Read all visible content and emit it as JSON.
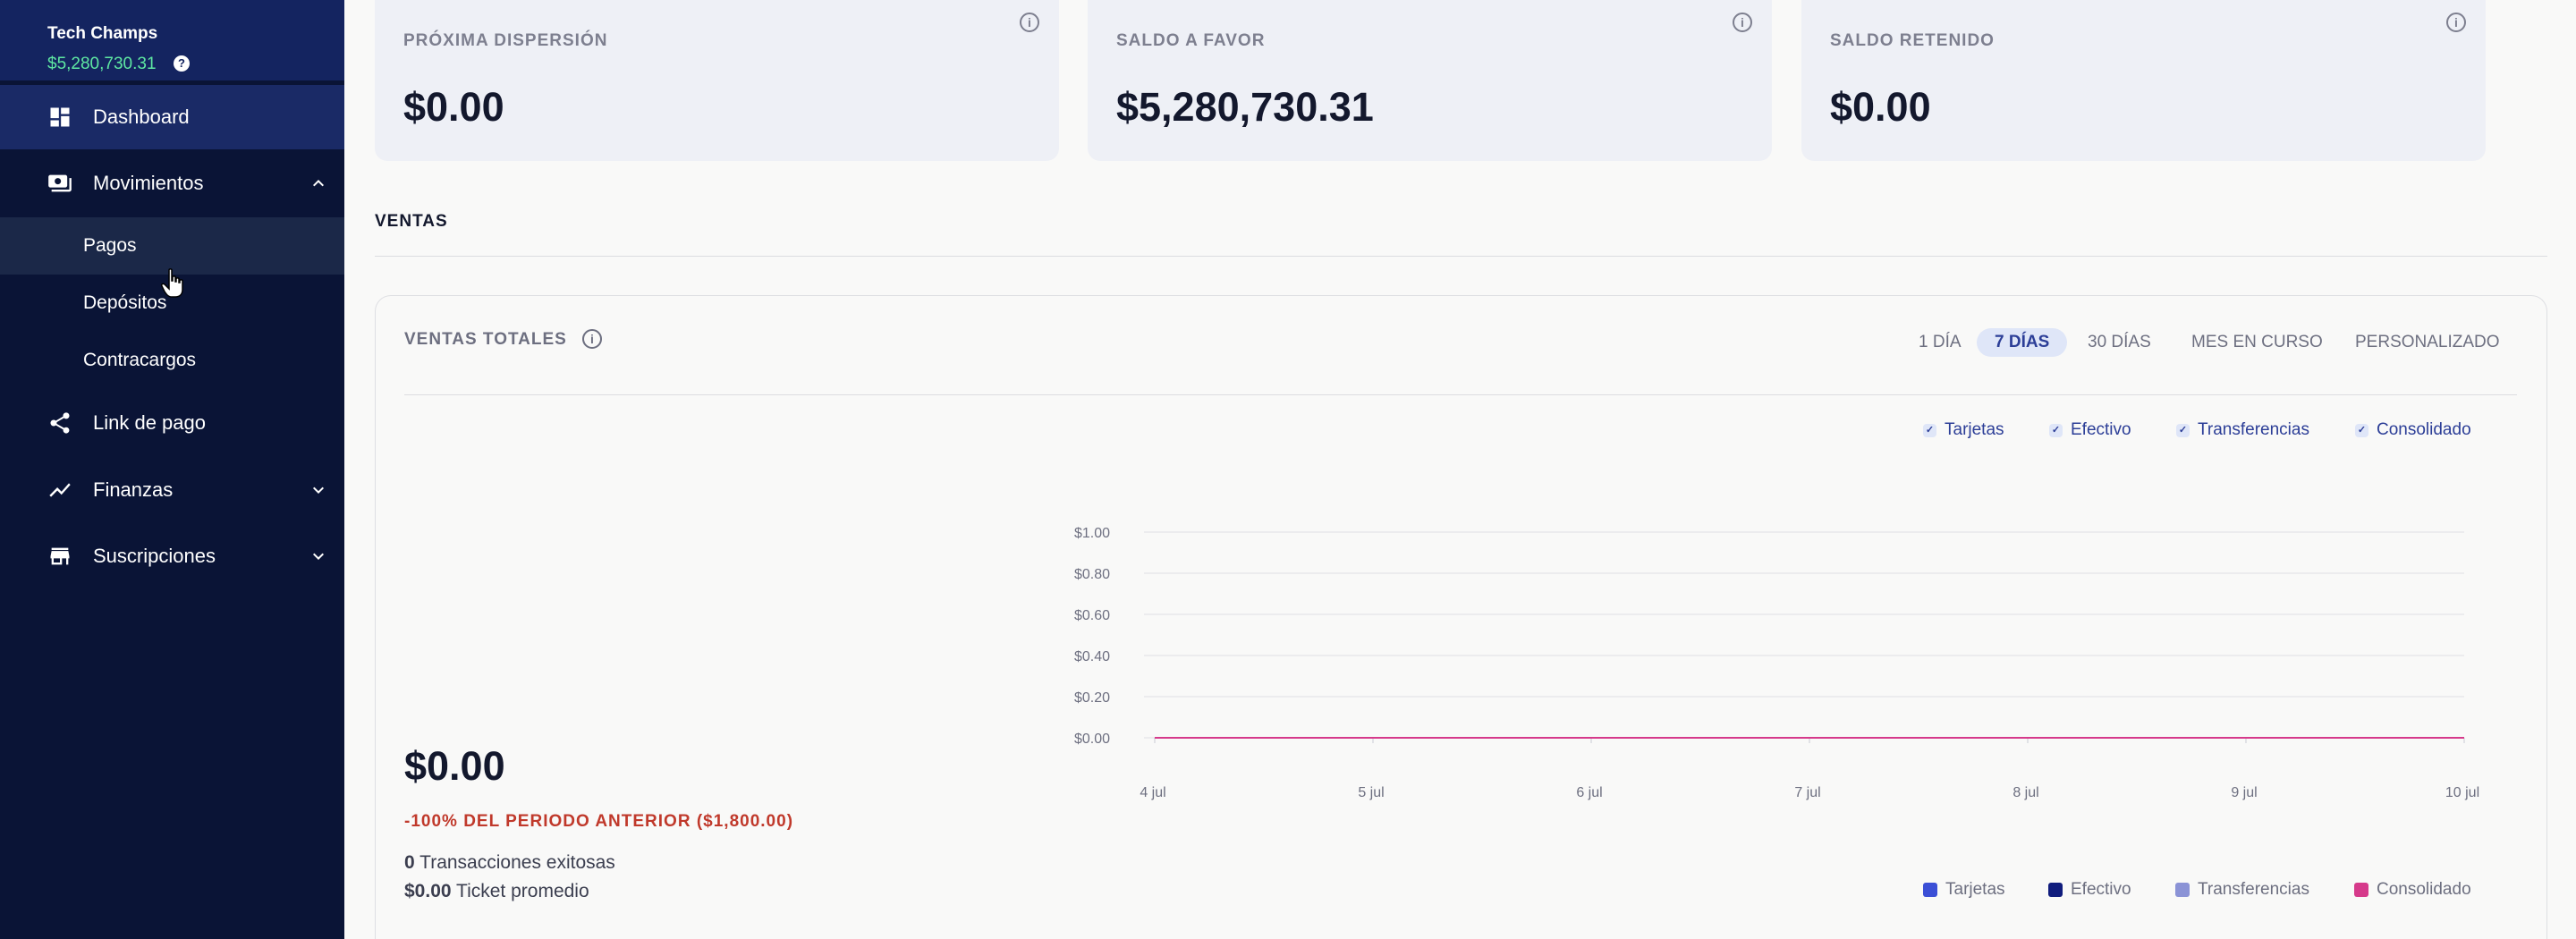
{
  "sidebar": {
    "brand_name": "Tech Champs",
    "brand_balance": "$5,280,730.31",
    "help_glyph": "?",
    "items": [
      {
        "label": "Dashboard",
        "icon": "dashboard-icon"
      },
      {
        "label": "Movimientos",
        "icon": "money-icon",
        "expanded": true
      },
      {
        "label": "Link de pago",
        "icon": "share-icon"
      },
      {
        "label": "Finanzas",
        "icon": "trend-icon",
        "expanded": false
      },
      {
        "label": "Suscripciones",
        "icon": "store-icon",
        "expanded": false
      }
    ],
    "sub_items": [
      {
        "label": "Pagos"
      },
      {
        "label": "Depósitos"
      },
      {
        "label": "Contracargos"
      }
    ]
  },
  "top_cards": [
    {
      "label": "PRÓXIMA DISPERSIÓN",
      "value": "$0.00"
    },
    {
      "label": "SALDO A FAVOR",
      "value": "$5,280,730.31"
    },
    {
      "label": "SALDO RETENIDO",
      "value": "$0.00"
    }
  ],
  "info_glyph": "i",
  "section_title": "VENTAS",
  "sales": {
    "title": "VENTAS TOTALES",
    "ranges": [
      "1 DÍA",
      "7 DÍAS",
      "30 DÍAS",
      "MES EN CURSO",
      "PERSONALIZADO"
    ],
    "active_range": "7 DÍAS",
    "filters": [
      "Tarjetas",
      "Efectivo",
      "Transferencias",
      "Consolidado"
    ],
    "check_glyph": "✓",
    "total": "$0.00",
    "delta": "-100% DEL PERIODO ANTERIOR ($1,800.00)",
    "transactions_count": "0",
    "transactions_label": "Transacciones exitosas",
    "ticket_value": "$0.00",
    "ticket_label": "Ticket promedio"
  },
  "colors": {
    "tarjetas": "#3b4fd6",
    "efectivo": "#101c7d",
    "transferencias": "#8b93d6",
    "consolidado": "#d63a8b"
  },
  "chart_data": {
    "type": "line",
    "x": [
      "4 jul",
      "5 jul",
      "6 jul",
      "7 jul",
      "8 jul",
      "9 jul",
      "10 jul"
    ],
    "y_ticks": [
      "$1.00",
      "$0.80",
      "$0.60",
      "$0.40",
      "$0.20",
      "$0.00"
    ],
    "ylim": [
      0,
      1
    ],
    "grid": true,
    "legend_position": "bottom-right",
    "series": [
      {
        "name": "Tarjetas",
        "values": [
          0,
          0,
          0,
          0,
          0,
          0,
          0
        ]
      },
      {
        "name": "Efectivo",
        "values": [
          0,
          0,
          0,
          0,
          0,
          0,
          0
        ]
      },
      {
        "name": "Transferencias",
        "values": [
          0,
          0,
          0,
          0,
          0,
          0,
          0
        ]
      },
      {
        "name": "Consolidado",
        "values": [
          0,
          0,
          0,
          0,
          0,
          0,
          0
        ]
      }
    ]
  }
}
